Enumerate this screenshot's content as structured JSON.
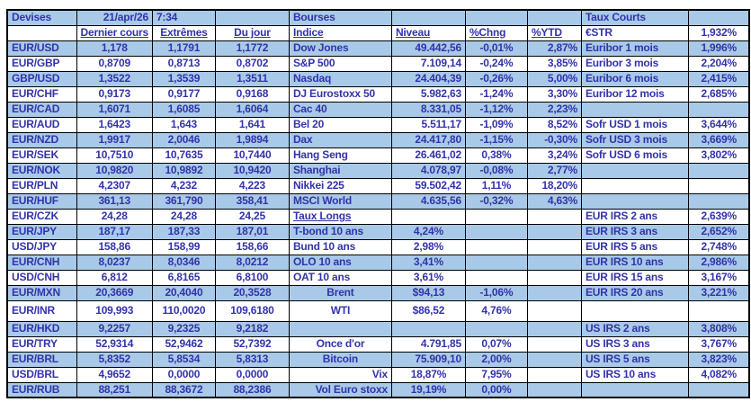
{
  "colors": {
    "row_highlight": "#A8CAE8",
    "text": "#3333AA",
    "border": "#000000"
  },
  "header_row": {
    "devises": "Devises",
    "date": "21/apr/26",
    "time": "7:34",
    "bourses": "Bourses",
    "taux_courts": "Taux Courts"
  },
  "subheader_row": {
    "fx_cols": [
      "Dernier cours",
      "Extrêmes",
      "Du jour"
    ],
    "bourse_cols": [
      "Indice",
      "Niveau",
      "%Chng",
      "%YTD"
    ],
    "estr_label": "€STR",
    "estr_value": "1,932%"
  },
  "fx_rows": [
    {
      "pair": "EUR/USD",
      "last": "1,178",
      "extremes": "1,1791",
      "dujour": "1,1772"
    },
    {
      "pair": "EUR/GBP",
      "last": "0,8709",
      "extremes": "0,8713",
      "dujour": "0,8702"
    },
    {
      "pair": "GBP/USD",
      "last": "1,3522",
      "extremes": "1,3539",
      "dujour": "1,3511"
    },
    {
      "pair": "EUR/CHF",
      "last": "0,9173",
      "extremes": "0,9177",
      "dujour": "0,9168"
    },
    {
      "pair": "EUR/CAD",
      "last": "1,6071",
      "extremes": "1,6085",
      "dujour": "1,6064"
    },
    {
      "pair": "EUR/AUD",
      "last": "1,6423",
      "extremes": "1,643",
      "dujour": "1,641"
    },
    {
      "pair": "EUR/NZD",
      "last": "1,9917",
      "extremes": "2,0046",
      "dujour": "1,9894"
    },
    {
      "pair": "EUR/SEK",
      "last": "10,7510",
      "extremes": "10,7635",
      "dujour": "10,7440"
    },
    {
      "pair": "EUR/NOK",
      "last": "10,9820",
      "extremes": "10,9892",
      "dujour": "10,9420"
    },
    {
      "pair": "EUR/PLN",
      "last": "4,2307",
      "extremes": "4,232",
      "dujour": "4,223"
    },
    {
      "pair": "EUR/HUF",
      "last": "361,13",
      "extremes": "361,790",
      "dujour": "358,41"
    },
    {
      "pair": "EUR/CZK",
      "last": "24,28",
      "extremes": "24,28",
      "dujour": "24,25"
    },
    {
      "pair": "EUR/JPY",
      "last": "187,17",
      "extremes": "187,33",
      "dujour": "187,01"
    },
    {
      "pair": "USD/JPY",
      "last": "158,86",
      "extremes": "158,99",
      "dujour": "158,66"
    },
    {
      "pair": "EUR/CNH",
      "last": "8,0237",
      "extremes": "8,0346",
      "dujour": "8,0212"
    },
    {
      "pair": "USD/CNH",
      "last": "6,812",
      "extremes": "6,8165",
      "dujour": "6,8100"
    },
    {
      "pair": "EUR/MXN",
      "last": "20,3669",
      "extremes": "20,4040",
      "dujour": "20,3528"
    },
    {
      "pair": "EUR/INR",
      "last": "109,993",
      "extremes": "110,0020",
      "dujour": "109,6180"
    },
    {
      "pair": "EUR/HKD",
      "last": "9,2257",
      "extremes": "9,2325",
      "dujour": "9,2182"
    },
    {
      "pair": "EUR/TRY",
      "last": "52,9314",
      "extremes": "52,9462",
      "dujour": "52,7392"
    },
    {
      "pair": "EUR/BRL",
      "last": "5,8352",
      "extremes": "5,8534",
      "dujour": "5,8313"
    },
    {
      "pair": "USD/BRL",
      "last": "4,9652",
      "extremes": "0,0000",
      "dujour": "0,0000"
    },
    {
      "pair": "EUR/RUB",
      "last": "88,251",
      "extremes": "88,3672",
      "dujour": "88,2386"
    }
  ],
  "bourse_rows": [
    {
      "label": "Dow Jones",
      "niveau": "49.442,56",
      "chng": "-0,01%",
      "ytd": "2,87%"
    },
    {
      "label": "S&P 500",
      "niveau": "7.109,14",
      "chng": "-0,24%",
      "ytd": "3,85%"
    },
    {
      "label": "Nasdaq",
      "niveau": "24.404,39",
      "chng": "-0,26%",
      "ytd": "5,00%"
    },
    {
      "label": "DJ Eurostoxx 50",
      "niveau": "5.982,63",
      "chng": "-1,24%",
      "ytd": "3,30%"
    },
    {
      "label": "Cac 40",
      "niveau": "8.331,05",
      "chng": "-1,12%",
      "ytd": "2,23%"
    },
    {
      "label": "Bel 20",
      "niveau": "5.511,17",
      "chng": "-1,09%",
      "ytd": "8,52%"
    },
    {
      "label": "Dax",
      "niveau": "24.417,80",
      "chng": "-1,15%",
      "ytd": "-0,30%"
    },
    {
      "label": "Hang Seng",
      "niveau": "26.461,02",
      "chng": "0,38%",
      "ytd": "3,24%"
    },
    {
      "label": "Shanghai",
      "niveau": "4.078,97",
      "chng": "-0,08%",
      "ytd": "2,77%"
    },
    {
      "label": "Nikkei 225",
      "niveau": "59.502,42",
      "chng": "1,11%",
      "ytd": "18,20%"
    },
    {
      "label": "MSCI World",
      "niveau": "4.635,56",
      "chng": "-0,32%",
      "ytd": "4,63%"
    },
    {
      "label": "Taux Longs",
      "niveau": "",
      "chng": "",
      "ytd": "",
      "underline": true
    },
    {
      "label": "T-bond 10 ans",
      "niveau": "4,24%",
      "chng": "",
      "ytd": "",
      "niveau_align": "center"
    },
    {
      "label": "Bund 10 ans",
      "niveau": "2,98%",
      "chng": "",
      "ytd": "",
      "niveau_align": "center"
    },
    {
      "label": "OLO 10 ans",
      "niveau": "3,41%",
      "chng": "",
      "ytd": "",
      "niveau_align": "center"
    },
    {
      "label": "OAT 10 ans",
      "niveau": "3,61%",
      "chng": "",
      "ytd": "",
      "niveau_align": "center"
    },
    {
      "label": "Brent",
      "niveau": "$94,13",
      "chng": "-1,06%",
      "ytd": "",
      "label_align": "center",
      "niveau_align": "center"
    },
    {
      "label": "WTI",
      "niveau": "$86,52",
      "chng": "4,76%",
      "ytd": "",
      "label_align": "center",
      "niveau_align": "center"
    },
    {
      "label": "",
      "niveau": "",
      "chng": "",
      "ytd": ""
    },
    {
      "label": "Once d'or",
      "niveau": "4.791,85",
      "chng": "0,07%",
      "ytd": "",
      "label_align": "center"
    },
    {
      "label": "Bitcoin",
      "niveau": "75.909,10",
      "chng": "2,00%",
      "ytd": "",
      "label_align": "center"
    },
    {
      "label": "Vix",
      "niveau": "18,87%",
      "chng": "7,95%",
      "ytd": "",
      "label_align": "right",
      "niveau_align": "center"
    },
    {
      "label": "Vol Euro stoxx",
      "niveau": "19,19%",
      "chng": "0,00%",
      "ytd": "",
      "label_align": "right",
      "niveau_align": "center"
    }
  ],
  "rate_rows": [
    {
      "label": "Euribor 1 mois",
      "value": "1,996%"
    },
    {
      "label": "Euribor 3 mois",
      "value": "2,204%"
    },
    {
      "label": "Euribor 6 mois",
      "value": "2,415%"
    },
    {
      "label": "Euribor 12 mois",
      "value": "2,685%"
    },
    {
      "label": "",
      "value": ""
    },
    {
      "label": "Sofr USD 1 mois",
      "value": "3,644%"
    },
    {
      "label": "Sofr USD 3 mois",
      "value": "3,669%"
    },
    {
      "label": "Sofr USD 6 mois",
      "value": "3,802%"
    },
    {
      "label": "",
      "value": ""
    },
    {
      "label": "",
      "value": ""
    },
    {
      "label": "",
      "value": ""
    },
    {
      "label": "EUR IRS 2 ans",
      "value": "2,639%"
    },
    {
      "label": "EUR IRS 3 ans",
      "value": "2,652%"
    },
    {
      "label": "EUR IRS 5 ans",
      "value": "2,748%"
    },
    {
      "label": "EUR IRS 10 ans",
      "value": "2,986%"
    },
    {
      "label": "EUR IRS 15 ans",
      "value": "3,167%"
    },
    {
      "label": "EUR IRS 20 ans",
      "value": "3,221%"
    },
    {
      "label": "",
      "value": ""
    },
    {
      "label": "US IRS 2 ans",
      "value": "3,808%"
    },
    {
      "label": "US IRS 3 ans",
      "value": "3,767%"
    },
    {
      "label": "US IRS 5 ans",
      "value": "3,823%"
    },
    {
      "label": "US IRS 10 ans",
      "value": "4,082%"
    },
    {
      "label": "",
      "value": ""
    }
  ]
}
